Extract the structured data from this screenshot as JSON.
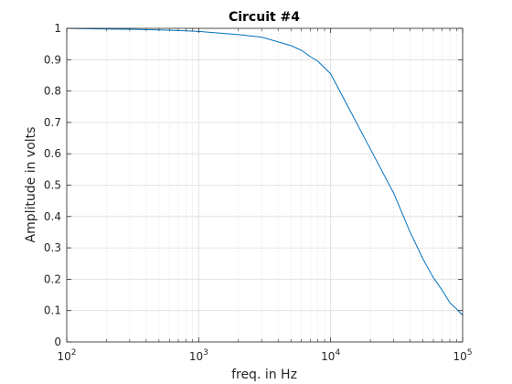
{
  "chart_data": {
    "type": "line",
    "title": "Circuit #4",
    "xlabel": "freq. in Hz",
    "ylabel": "Amplitude in volts",
    "xscale": "log",
    "xlim": [
      100,
      100000
    ],
    "ylim": [
      0,
      1
    ],
    "grid": true,
    "minor_grid": true,
    "x_ticks": [
      {
        "base": "10",
        "exp": "2",
        "value": 100
      },
      {
        "base": "10",
        "exp": "3",
        "value": 1000
      },
      {
        "base": "10",
        "exp": "4",
        "value": 10000
      },
      {
        "base": "10",
        "exp": "5",
        "value": 100000
      }
    ],
    "y_ticks": [
      "0",
      "0.1",
      "0.2",
      "0.3",
      "0.4",
      "0.5",
      "0.6",
      "0.7",
      "0.8",
      "0.9",
      "1"
    ],
    "series": [
      {
        "color": "#0072BD",
        "x": [
          100,
          200,
          300,
          500,
          700,
          1000,
          2000,
          3000,
          5000,
          6000,
          7000,
          8000,
          10000,
          20000,
          30000,
          40000,
          50000,
          60000,
          70000,
          80000,
          90000,
          100000
        ],
        "y": [
          1.0,
          0.998,
          0.997,
          0.995,
          0.993,
          0.99,
          0.98,
          0.972,
          0.945,
          0.93,
          0.91,
          0.895,
          0.855,
          0.615,
          0.475,
          0.35,
          0.265,
          0.205,
          0.165,
          0.125,
          0.105,
          0.085
        ]
      }
    ]
  }
}
